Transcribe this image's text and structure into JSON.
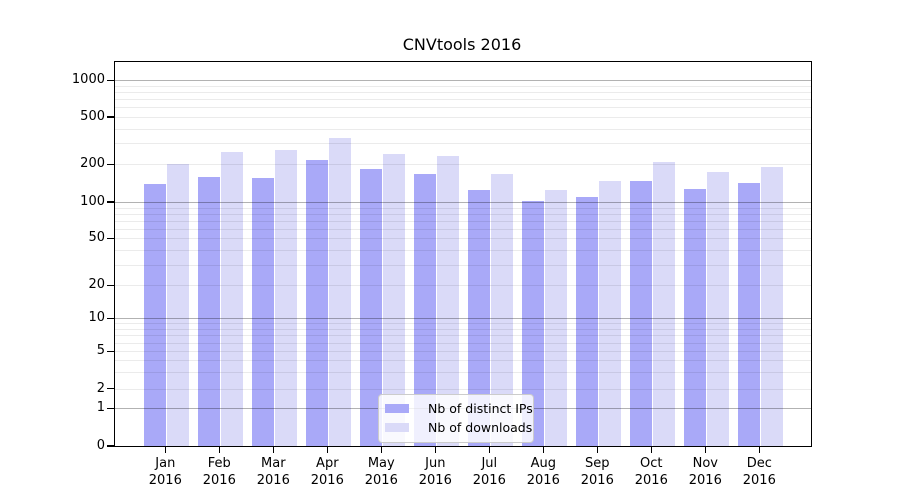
{
  "chart_data": {
    "type": "bar",
    "title": "CNVtools 2016",
    "categories": [
      "Jan 2016",
      "Feb 2016",
      "Mar 2016",
      "Apr 2016",
      "May 2016",
      "Jun 2016",
      "Jul 2016",
      "Aug 2016",
      "Sep 2016",
      "Oct 2016",
      "Nov 2016",
      "Dec 2016"
    ],
    "series": [
      {
        "name": "Nb of distinct IPs",
        "color": "#a9a9f8",
        "values": [
          138,
          157,
          155,
          218,
          184,
          166,
          124,
          101,
          110,
          148,
          128,
          141
        ]
      },
      {
        "name": "Nb of downloads",
        "color": "#dadaf8",
        "values": [
          200,
          255,
          265,
          330,
          246,
          233,
          168,
          124,
          146,
          210,
          174,
          191
        ]
      }
    ],
    "xlabel": "",
    "ylabel": "",
    "yscale": "symlog",
    "yticks": [
      0,
      1,
      2,
      5,
      10,
      20,
      50,
      100,
      200,
      500,
      1000
    ],
    "ylim": [
      0,
      1400
    ],
    "grid": true,
    "legend_position": "lower center"
  },
  "legend": {
    "items": [
      {
        "label": "Nb of distinct IPs"
      },
      {
        "label": "Nb of downloads"
      }
    ]
  },
  "colors": {
    "bar_ips": "#a9a9f8",
    "bar_downloads": "#dadaf8",
    "grid_major": "rgba(0,0,0,0.30)",
    "grid_minor": "rgba(0,0,0,0.08)",
    "axis": "#000000",
    "background": "#ffffff"
  }
}
